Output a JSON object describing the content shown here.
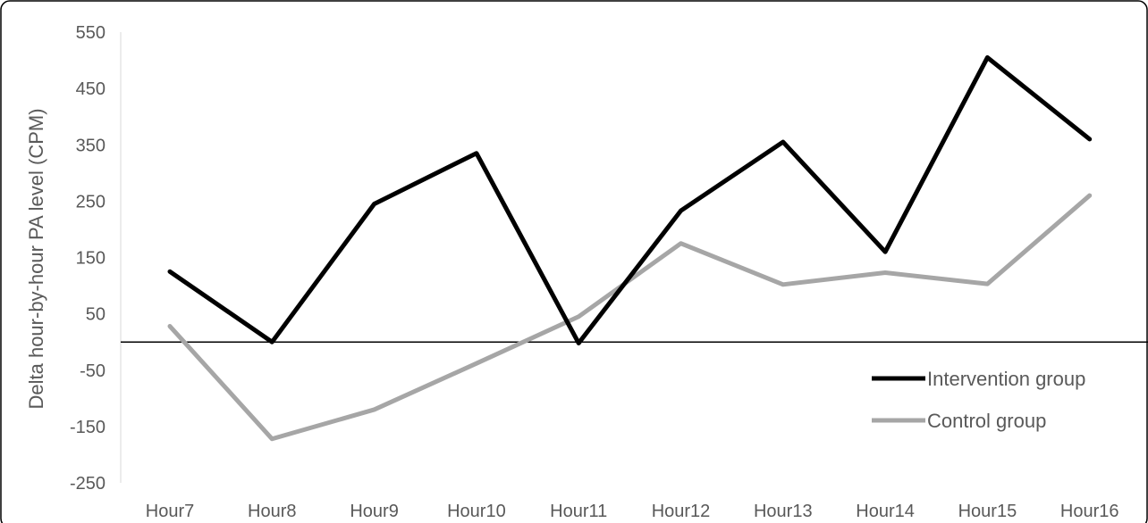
{
  "chart_data": {
    "type": "line",
    "title": "",
    "xlabel": "",
    "ylabel": "Delta hour-by-hour PA level (CPM)",
    "categories": [
      "Hour7",
      "Hour8",
      "Hour9",
      "Hour10",
      "Hour11",
      "Hour12",
      "Hour13",
      "Hour14",
      "Hour15",
      "Hour16"
    ],
    "ylim": [
      -250,
      550
    ],
    "yticks": [
      -250,
      -150,
      -50,
      50,
      150,
      250,
      350,
      450,
      550
    ],
    "zero_line": true,
    "grid": false,
    "legend_position": "right",
    "series": [
      {
        "name": "Intervention group",
        "color": "#000000",
        "values": [
          125,
          0,
          245,
          335,
          -2,
          233,
          355,
          160,
          505,
          360
        ]
      },
      {
        "name": "Control group",
        "color": "#a6a6a6",
        "values": [
          28,
          -172,
          -120,
          -38,
          45,
          175,
          102,
          123,
          103,
          260
        ]
      }
    ]
  }
}
